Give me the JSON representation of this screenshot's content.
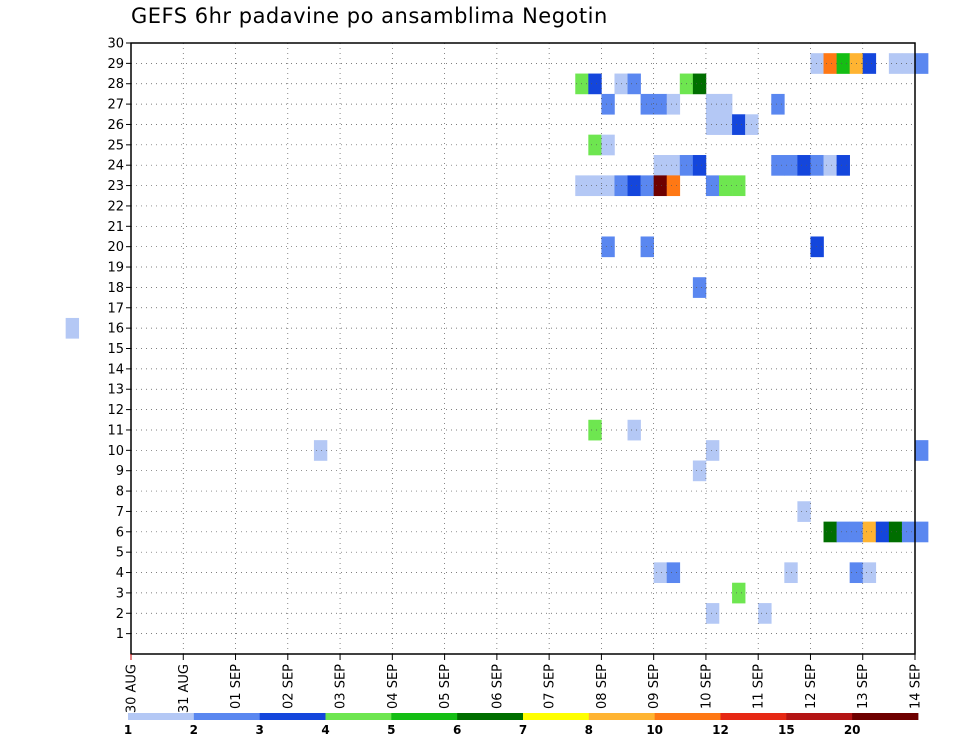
{
  "chart_data": {
    "type": "heatmap",
    "title": "GEFS 6hr padavine po ansamblima Negotin",
    "x_tick_labels": [
      "30 AUG",
      "31 AUG",
      "01 SEP",
      "02 SEP",
      "03 SEP",
      "04 SEP",
      "05 SEP",
      "06 SEP",
      "07 SEP",
      "08 SEP",
      "09 SEP",
      "10 SEP",
      "11 SEP",
      "12 SEP",
      "13 SEP",
      "14 SEP"
    ],
    "y_tick_labels": [
      "1",
      "2",
      "3",
      "4",
      "5",
      "6",
      "7",
      "8",
      "9",
      "10",
      "11",
      "12",
      "13",
      "14",
      "15",
      "16",
      "17",
      "18",
      "19",
      "20",
      "21",
      "22",
      "23",
      "24",
      "25",
      "26",
      "27",
      "28",
      "29",
      "30"
    ],
    "ylim": [
      0,
      30
    ],
    "grid": true,
    "time_step_hours": 6,
    "legend": {
      "labels": [
        "1",
        "2",
        "3",
        "4",
        "5",
        "6",
        "7",
        "8",
        "10",
        "12",
        "15",
        "20"
      ],
      "colors": [
        "#b4c8f5",
        "#5a87f0",
        "#1446dc",
        "#6ee650",
        "#14be14",
        "#006e00",
        "#ffff00",
        "#ffb432",
        "#ff7814",
        "#e62814",
        "#b41414",
        "#6e0000"
      ]
    },
    "cells": [
      {
        "member": 29,
        "step": 0,
        "level": 1
      },
      {
        "member": 29,
        "step": 1,
        "level": 9
      },
      {
        "member": 29,
        "step": 2,
        "level": 5
      },
      {
        "member": 29,
        "step": 3,
        "level": 8
      },
      {
        "member": 29,
        "step": 4,
        "level": 3
      },
      {
        "member": 29,
        "step": 6,
        "level": 1
      },
      {
        "member": 29,
        "step": 7,
        "level": 1
      },
      {
        "member": 29,
        "step": 8,
        "level": 2
      },
      {
        "member": 28,
        "step": -18,
        "level": 4
      },
      {
        "member": 28,
        "step": -17,
        "level": 3
      },
      {
        "member": 28,
        "step": -15,
        "level": 1
      },
      {
        "member": 28,
        "step": -14,
        "level": 2
      },
      {
        "member": 28,
        "step": -10,
        "level": 4
      },
      {
        "member": 28,
        "step": -9,
        "level": 6
      },
      {
        "member": 27,
        "step": -16,
        "level": 2
      },
      {
        "member": 27,
        "step": -13,
        "level": 2
      },
      {
        "member": 27,
        "step": -12,
        "level": 2
      },
      {
        "member": 27,
        "step": -11,
        "level": 1
      },
      {
        "member": 27,
        "step": -8,
        "level": 1
      },
      {
        "member": 27,
        "step": -7,
        "level": 1
      },
      {
        "member": 27,
        "step": -3,
        "level": 2
      },
      {
        "member": 26,
        "step": -8,
        "level": 1
      },
      {
        "member": 26,
        "step": -7,
        "level": 1
      },
      {
        "member": 26,
        "step": -6,
        "level": 3
      },
      {
        "member": 26,
        "step": -5,
        "level": 1
      },
      {
        "member": 25,
        "step": -17,
        "level": 4
      },
      {
        "member": 25,
        "step": -16,
        "level": 1
      },
      {
        "member": 24,
        "step": -12,
        "level": 1
      },
      {
        "member": 24,
        "step": -11,
        "level": 1
      },
      {
        "member": 24,
        "step": -10,
        "level": 2
      },
      {
        "member": 24,
        "step": -9,
        "level": 3
      },
      {
        "member": 24,
        "step": -3,
        "level": 2
      },
      {
        "member": 24,
        "step": -2,
        "level": 2
      },
      {
        "member": 24,
        "step": -1,
        "level": 3
      },
      {
        "member": 24,
        "step": 0,
        "level": 2
      },
      {
        "member": 24,
        "step": 1,
        "level": 1
      },
      {
        "member": 24,
        "step": 2,
        "level": 3
      },
      {
        "member": 23,
        "step": -18,
        "level": 1
      },
      {
        "member": 23,
        "step": -17,
        "level": 1
      },
      {
        "member": 23,
        "step": -16,
        "level": 1
      },
      {
        "member": 23,
        "step": -15,
        "level": 2
      },
      {
        "member": 23,
        "step": -14,
        "level": 3
      },
      {
        "member": 23,
        "step": -13,
        "level": 2
      },
      {
        "member": 23,
        "step": -12,
        "level": 12
      },
      {
        "member": 23,
        "step": -11,
        "level": 9
      },
      {
        "member": 23,
        "step": -8,
        "level": 2
      },
      {
        "member": 23,
        "step": -7,
        "level": 4
      },
      {
        "member": 23,
        "step": -6,
        "level": 4
      },
      {
        "member": 20,
        "step": -16,
        "level": 2
      },
      {
        "member": 20,
        "step": -13,
        "level": 2
      },
      {
        "member": 20,
        "step": 0,
        "level": 3
      },
      {
        "member": 18,
        "step": -9,
        "level": 2
      },
      {
        "member": 16,
        "step": -57,
        "level": 1
      },
      {
        "member": 11,
        "step": -17,
        "level": 4
      },
      {
        "member": 11,
        "step": -14,
        "level": 1
      },
      {
        "member": 10,
        "step": -38,
        "level": 1
      },
      {
        "member": 10,
        "step": -8,
        "level": 1
      },
      {
        "member": 10,
        "step": 8,
        "level": 2
      },
      {
        "member": 9,
        "step": -9,
        "level": 1
      },
      {
        "member": 7,
        "step": -1,
        "level": 1
      },
      {
        "member": 6,
        "step": 1,
        "level": 6
      },
      {
        "member": 6,
        "step": 2,
        "level": 2
      },
      {
        "member": 6,
        "step": 3,
        "level": 2
      },
      {
        "member": 6,
        "step": 4,
        "level": 8
      },
      {
        "member": 6,
        "step": 5,
        "level": 3
      },
      {
        "member": 6,
        "step": 6,
        "level": 6
      },
      {
        "member": 6,
        "step": 7,
        "level": 2
      },
      {
        "member": 6,
        "step": 8,
        "level": 2
      },
      {
        "member": 4,
        "step": -12,
        "level": 1
      },
      {
        "member": 4,
        "step": -11,
        "level": 2
      },
      {
        "member": 4,
        "step": -2,
        "level": 1
      },
      {
        "member": 4,
        "step": 3,
        "level": 2
      },
      {
        "member": 4,
        "step": 4,
        "level": 1
      },
      {
        "member": 3,
        "step": -6,
        "level": 4
      },
      {
        "member": 2,
        "step": -8,
        "level": 1
      },
      {
        "member": 2,
        "step": -4,
        "level": 1
      }
    ]
  }
}
